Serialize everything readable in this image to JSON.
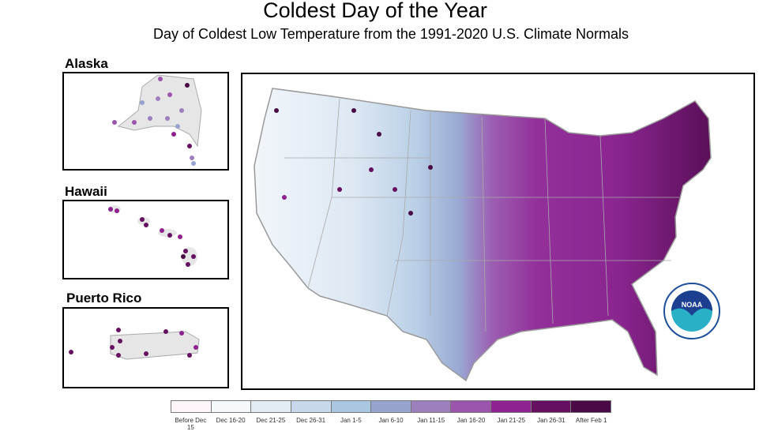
{
  "title": "Coldest Day of the Year",
  "subtitle": "Day of Coldest Low Temperature from the 1991-2020 U.S. Climate Normals",
  "insets": {
    "alaska": "Alaska",
    "hawaii": "Hawaii",
    "puerto_rico": "Puerto Rico"
  },
  "logo": {
    "text": "NOAA",
    "ring_text": "NATIONAL OCEANIC AND ATMOSPHERIC ADMINISTRATION U.S. DEPARTMENT OF COMMERCE"
  },
  "legend": [
    {
      "label": "Before Dec 15",
      "color": "#fdf5fa"
    },
    {
      "label": "Dec 16-20",
      "color": "#f5f9fc"
    },
    {
      "label": "Dec 21-25",
      "color": "#e2ecf5"
    },
    {
      "label": "Dec 26-31",
      "color": "#c6d8ea"
    },
    {
      "label": "Jan 1-5",
      "color": "#a9c7e1"
    },
    {
      "label": "Jan 6-10",
      "color": "#96a3cf"
    },
    {
      "label": "Jan 11-15",
      "color": "#9e7fbe"
    },
    {
      "label": "Jan 16-20",
      "color": "#9b55ad"
    },
    {
      "label": "Jan 21-25",
      "color": "#8e2290"
    },
    {
      "label": "Jan 26-31",
      "color": "#651060"
    },
    {
      "label": "After Feb 1",
      "color": "#4a0a45"
    }
  ]
}
